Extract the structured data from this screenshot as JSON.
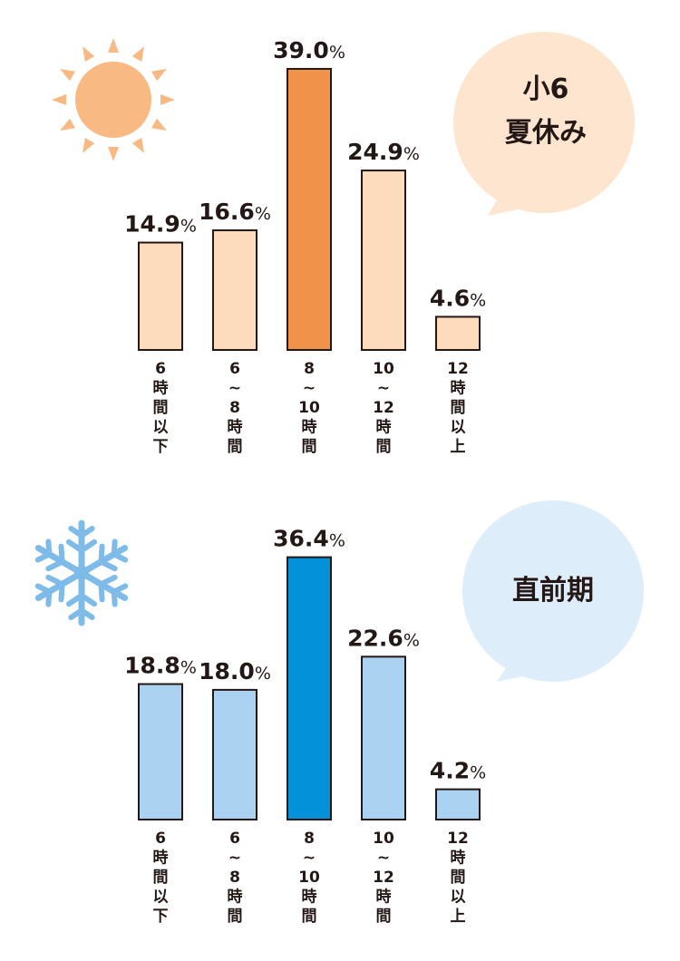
{
  "charts": [
    {
      "id": "summer",
      "label_lines": [
        "小6",
        "夏休み"
      ],
      "icon": "sun-icon",
      "colors": {
        "bar": "#fcdcbd",
        "highlight": "#f1924b",
        "icon": "#f8b983",
        "bubble": "#fde5cf"
      }
    },
    {
      "id": "before-exam",
      "label_lines": [
        "直前期"
      ],
      "icon": "snowflake-icon",
      "colors": {
        "bar": "#acd2f1",
        "highlight": "#0392d9",
        "icon": "#7fbbe8",
        "bubble": "#deedfa"
      }
    }
  ],
  "chart_data": [
    {
      "type": "bar",
      "title": "",
      "xlabel": "",
      "ylabel": "",
      "unit": "%",
      "ylim": [
        0,
        40
      ],
      "highlight_index": 2,
      "categories": [
        [
          "6",
          "時",
          "間",
          "以",
          "下"
        ],
        [
          "6",
          "~",
          "8",
          "時",
          "間"
        ],
        [
          "8",
          "~",
          "10",
          "時",
          "間"
        ],
        [
          "10",
          "~",
          "12",
          "時",
          "間"
        ],
        [
          "12",
          "時",
          "間",
          "以",
          "上"
        ]
      ],
      "values": [
        14.9,
        16.6,
        39.0,
        24.9,
        4.6
      ],
      "value_labels": [
        "14.9",
        "16.6",
        "39.0",
        "24.9",
        "4.6"
      ]
    },
    {
      "type": "bar",
      "title": "",
      "xlabel": "",
      "ylabel": "",
      "unit": "%",
      "ylim": [
        0,
        40
      ],
      "highlight_index": 2,
      "categories": [
        [
          "6",
          "時",
          "間",
          "以",
          "下"
        ],
        [
          "6",
          "~",
          "8",
          "時",
          "間"
        ],
        [
          "8",
          "~",
          "10",
          "時",
          "間"
        ],
        [
          "10",
          "~",
          "12",
          "時",
          "間"
        ],
        [
          "12",
          "時",
          "間",
          "以",
          "上"
        ]
      ],
      "values": [
        18.8,
        18.0,
        36.4,
        22.6,
        4.2
      ],
      "value_labels": [
        "18.8",
        "18.0",
        "36.4",
        "22.6",
        "4.2"
      ]
    }
  ]
}
